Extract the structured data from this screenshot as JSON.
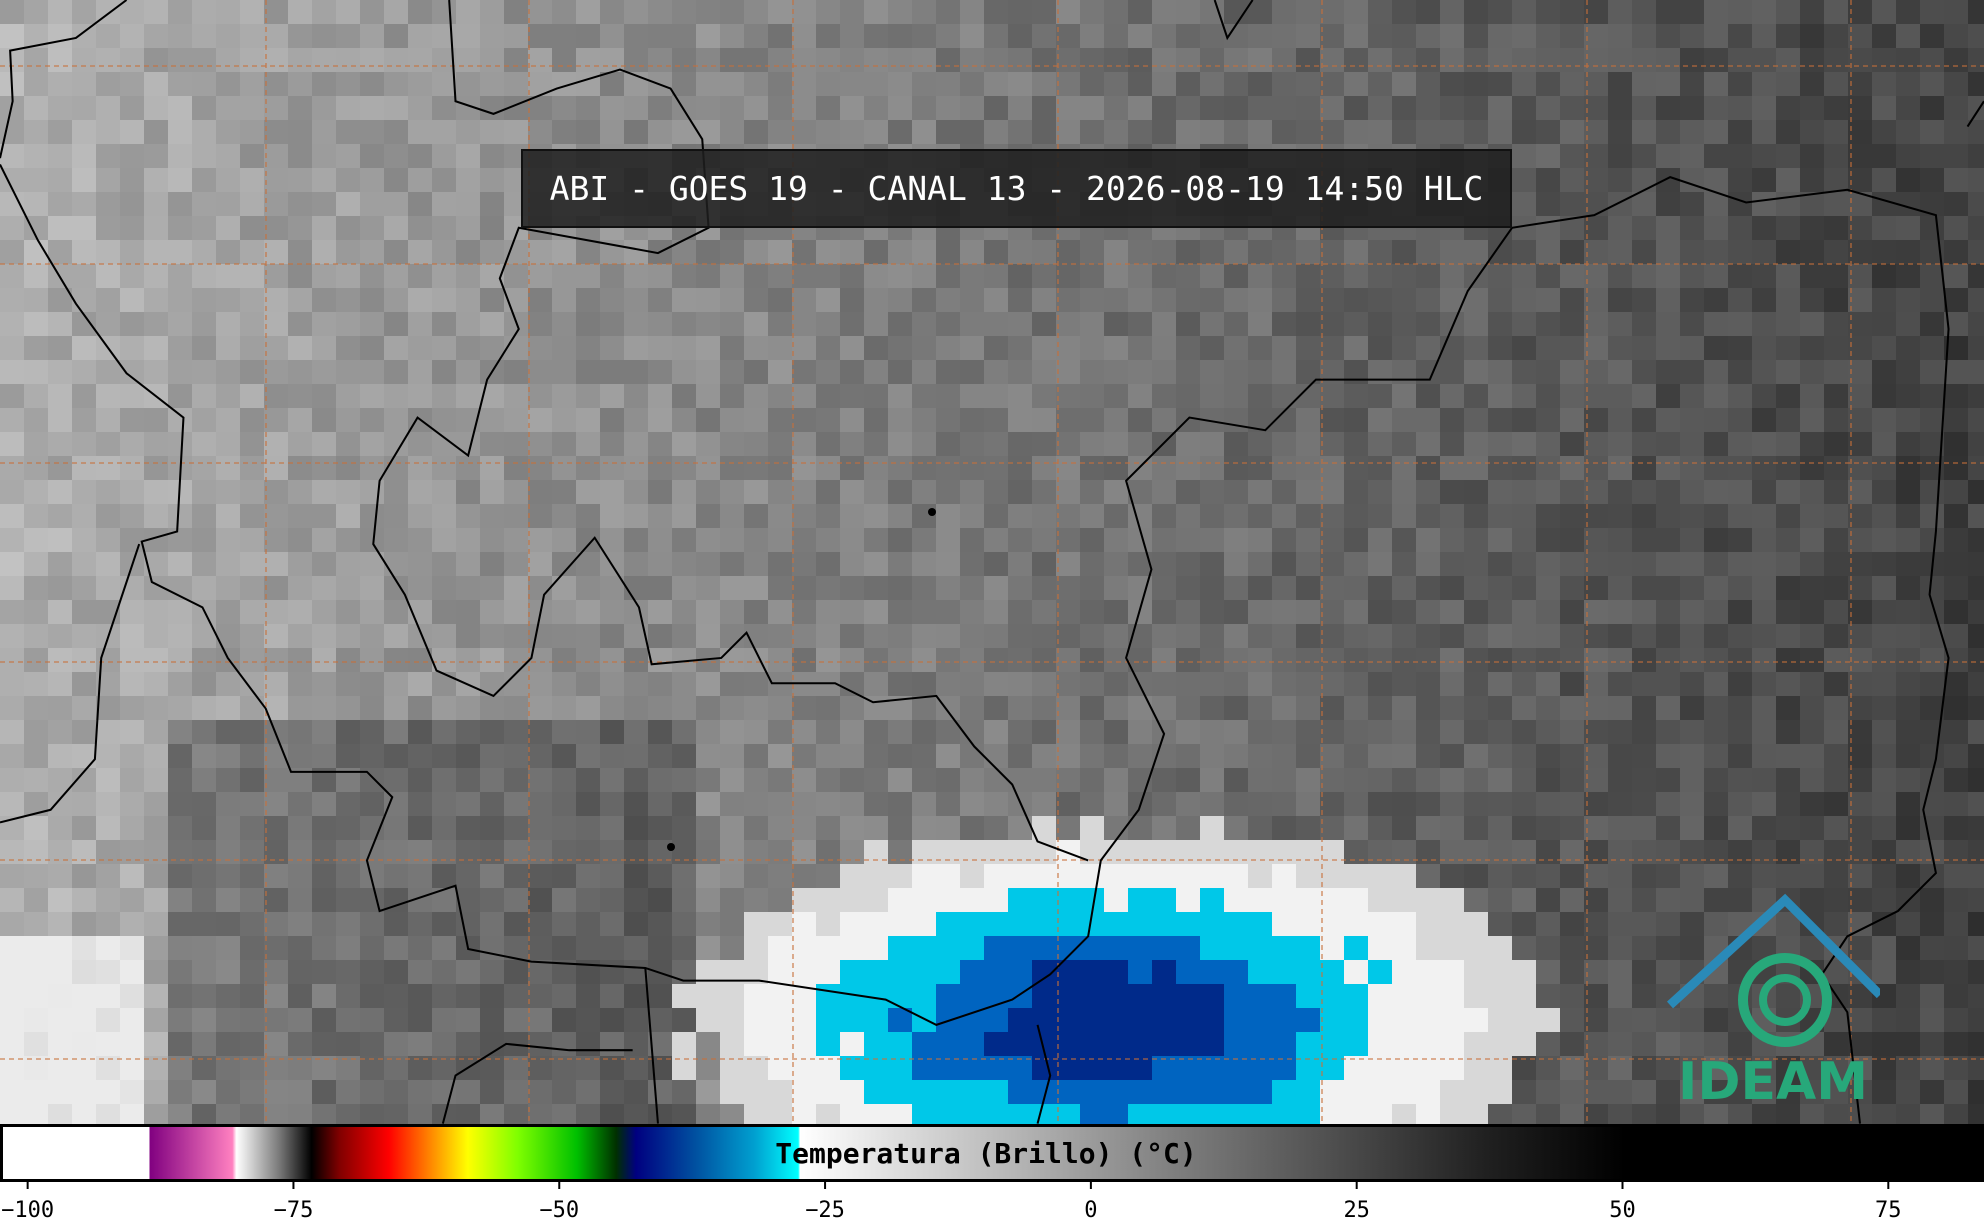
{
  "title": "ABI - GOES 19 - CANAL 13 - 2026-08-19 14:50 HLC",
  "logo": "IDEAM",
  "colorbar": {
    "label": "Temperatura (Brillo) (°C)",
    "lim": [
      -102.6,
      84.0
    ],
    "ticks": [
      {
        "value": -100,
        "label": "−100"
      },
      {
        "value": -75,
        "label": "−75"
      },
      {
        "value": -50,
        "label": "−50"
      },
      {
        "value": -25,
        "label": "−25"
      },
      0,
      25,
      50,
      75
    ]
  }
}
